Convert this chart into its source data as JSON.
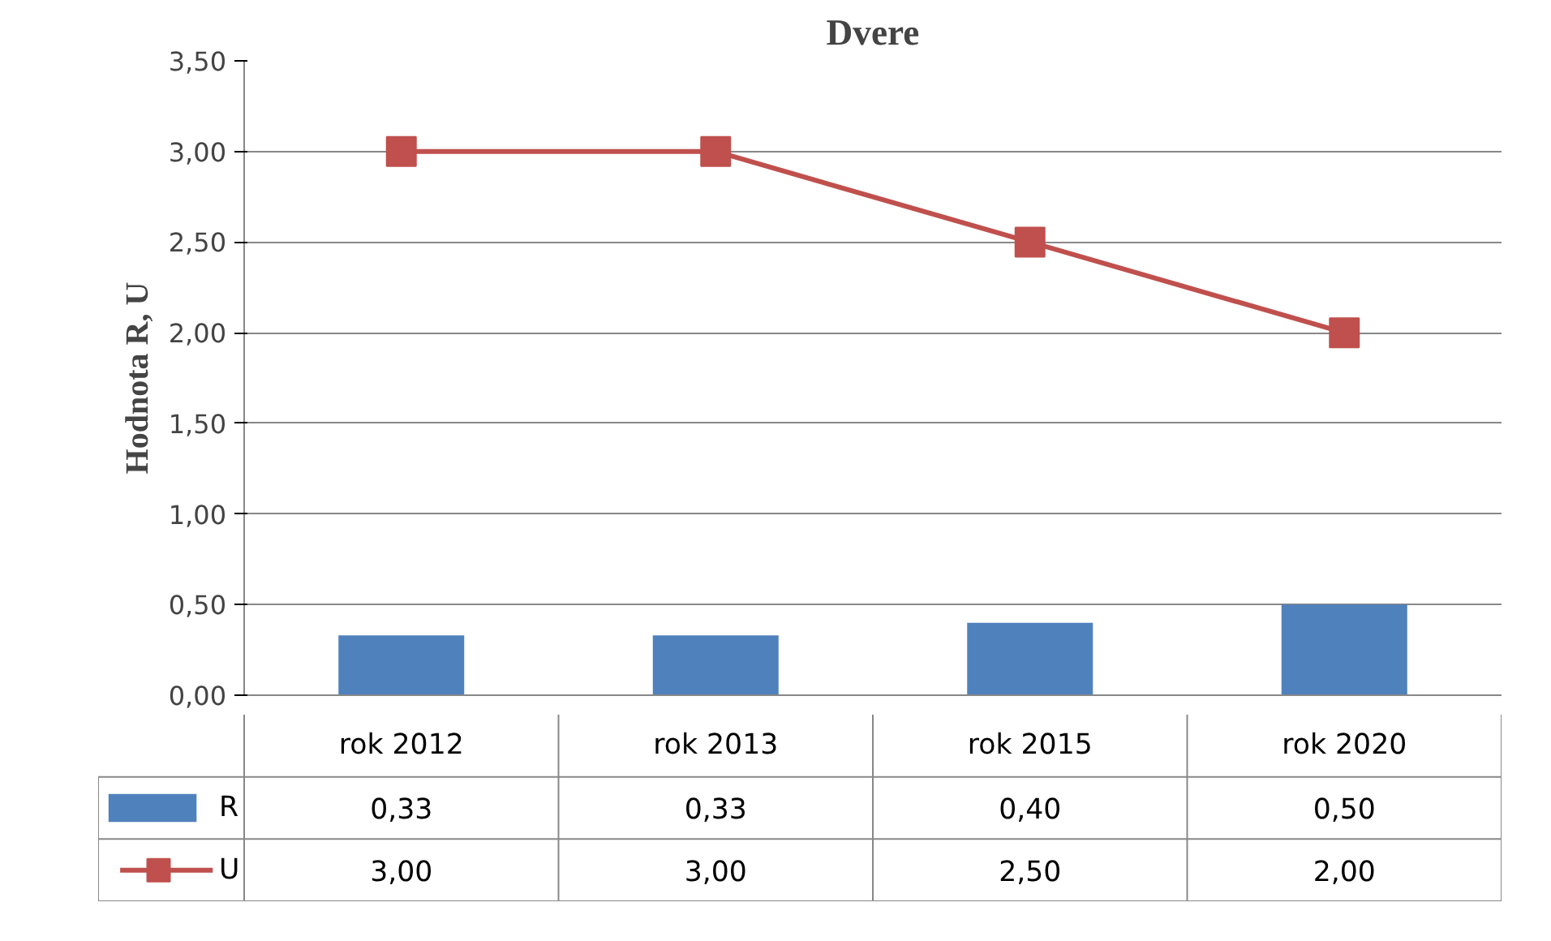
{
  "chart_data": {
    "type": "bar",
    "title": "Dvere",
    "ylabel": "Hodnota R, U",
    "categories": [
      "rok 2012",
      "rok 2013",
      "rok 2015",
      "rok 2020"
    ],
    "series": [
      {
        "name": "R",
        "color": "#4f81bd",
        "values": [
          0.33,
          0.33,
          0.4,
          0.5
        ],
        "value_labels": [
          "0,33",
          "0,33",
          "0,40",
          "0,50"
        ]
      },
      {
        "name": "U",
        "type": "line",
        "color": "#c0504d",
        "values": [
          3.0,
          3.0,
          2.5,
          2.0
        ],
        "value_labels": [
          "3,00",
          "3,00",
          "2,50",
          "2,00"
        ],
        "marker": "square",
        "line_style": "solid"
      }
    ],
    "ylim": [
      0,
      3.5
    ],
    "yticks": [
      {
        "value": 0,
        "label": "0,00"
      },
      {
        "value": 0.5,
        "label": "0,50"
      },
      {
        "value": 1,
        "label": "1,00"
      },
      {
        "value": 1.5,
        "label": "1,50"
      },
      {
        "value": 2,
        "label": "2,00"
      },
      {
        "value": 2.5,
        "label": "2,50"
      },
      {
        "value": 3,
        "label": "3,00"
      },
      {
        "value": 3.5,
        "label": "3,50"
      }
    ],
    "grid": "y",
    "legend": "bottom"
  }
}
